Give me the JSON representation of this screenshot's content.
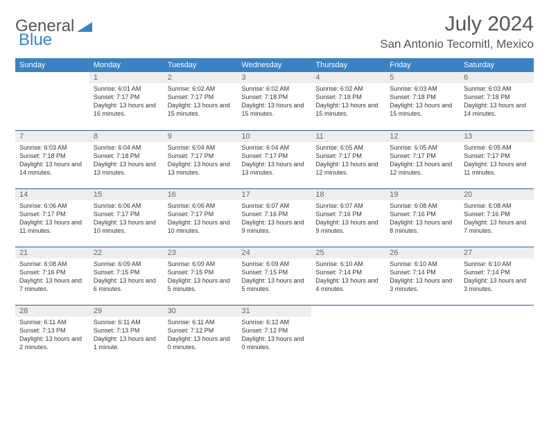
{
  "logo": {
    "part1": "General",
    "part2": "Blue"
  },
  "title": "July 2024",
  "location": "San Antonio Tecomitl, Mexico",
  "colors": {
    "header_bg": "#3b82c4",
    "header_text": "#ffffff",
    "daynum_bg": "#eeeeee",
    "rule": "#2a5a8a",
    "title_color": "#555555",
    "body_text": "#333333"
  },
  "day_headers": [
    "Sunday",
    "Monday",
    "Tuesday",
    "Wednesday",
    "Thursday",
    "Friday",
    "Saturday"
  ],
  "weeks": [
    [
      {
        "num": "",
        "lines": []
      },
      {
        "num": "1",
        "lines": [
          "Sunrise: 6:01 AM",
          "Sunset: 7:17 PM",
          "Daylight: 13 hours and 16 minutes."
        ]
      },
      {
        "num": "2",
        "lines": [
          "Sunrise: 6:02 AM",
          "Sunset: 7:17 PM",
          "Daylight: 13 hours and 15 minutes."
        ]
      },
      {
        "num": "3",
        "lines": [
          "Sunrise: 6:02 AM",
          "Sunset: 7:18 PM",
          "Daylight: 13 hours and 15 minutes."
        ]
      },
      {
        "num": "4",
        "lines": [
          "Sunrise: 6:02 AM",
          "Sunset: 7:18 PM",
          "Daylight: 13 hours and 15 minutes."
        ]
      },
      {
        "num": "5",
        "lines": [
          "Sunrise: 6:03 AM",
          "Sunset: 7:18 PM",
          "Daylight: 13 hours and 15 minutes."
        ]
      },
      {
        "num": "6",
        "lines": [
          "Sunrise: 6:03 AM",
          "Sunset: 7:18 PM",
          "Daylight: 13 hours and 14 minutes."
        ]
      }
    ],
    [
      {
        "num": "7",
        "lines": [
          "Sunrise: 6:03 AM",
          "Sunset: 7:18 PM",
          "Daylight: 13 hours and 14 minutes."
        ]
      },
      {
        "num": "8",
        "lines": [
          "Sunrise: 6:04 AM",
          "Sunset: 7:18 PM",
          "Daylight: 13 hours and 13 minutes."
        ]
      },
      {
        "num": "9",
        "lines": [
          "Sunrise: 6:04 AM",
          "Sunset: 7:17 PM",
          "Daylight: 13 hours and 13 minutes."
        ]
      },
      {
        "num": "10",
        "lines": [
          "Sunrise: 6:04 AM",
          "Sunset: 7:17 PM",
          "Daylight: 13 hours and 13 minutes."
        ]
      },
      {
        "num": "11",
        "lines": [
          "Sunrise: 6:05 AM",
          "Sunset: 7:17 PM",
          "Daylight: 13 hours and 12 minutes."
        ]
      },
      {
        "num": "12",
        "lines": [
          "Sunrise: 6:05 AM",
          "Sunset: 7:17 PM",
          "Daylight: 13 hours and 12 minutes."
        ]
      },
      {
        "num": "13",
        "lines": [
          "Sunrise: 6:05 AM",
          "Sunset: 7:17 PM",
          "Daylight: 13 hours and 11 minutes."
        ]
      }
    ],
    [
      {
        "num": "14",
        "lines": [
          "Sunrise: 6:06 AM",
          "Sunset: 7:17 PM",
          "Daylight: 13 hours and 11 minutes."
        ]
      },
      {
        "num": "15",
        "lines": [
          "Sunrise: 6:06 AM",
          "Sunset: 7:17 PM",
          "Daylight: 13 hours and 10 minutes."
        ]
      },
      {
        "num": "16",
        "lines": [
          "Sunrise: 6:06 AM",
          "Sunset: 7:17 PM",
          "Daylight: 13 hours and 10 minutes."
        ]
      },
      {
        "num": "17",
        "lines": [
          "Sunrise: 6:07 AM",
          "Sunset: 7:16 PM",
          "Daylight: 13 hours and 9 minutes."
        ]
      },
      {
        "num": "18",
        "lines": [
          "Sunrise: 6:07 AM",
          "Sunset: 7:16 PM",
          "Daylight: 13 hours and 9 minutes."
        ]
      },
      {
        "num": "19",
        "lines": [
          "Sunrise: 6:08 AM",
          "Sunset: 7:16 PM",
          "Daylight: 13 hours and 8 minutes."
        ]
      },
      {
        "num": "20",
        "lines": [
          "Sunrise: 6:08 AM",
          "Sunset: 7:16 PM",
          "Daylight: 13 hours and 7 minutes."
        ]
      }
    ],
    [
      {
        "num": "21",
        "lines": [
          "Sunrise: 6:08 AM",
          "Sunset: 7:16 PM",
          "Daylight: 13 hours and 7 minutes."
        ]
      },
      {
        "num": "22",
        "lines": [
          "Sunrise: 6:09 AM",
          "Sunset: 7:15 PM",
          "Daylight: 13 hours and 6 minutes."
        ]
      },
      {
        "num": "23",
        "lines": [
          "Sunrise: 6:09 AM",
          "Sunset: 7:15 PM",
          "Daylight: 13 hours and 5 minutes."
        ]
      },
      {
        "num": "24",
        "lines": [
          "Sunrise: 6:09 AM",
          "Sunset: 7:15 PM",
          "Daylight: 13 hours and 5 minutes."
        ]
      },
      {
        "num": "25",
        "lines": [
          "Sunrise: 6:10 AM",
          "Sunset: 7:14 PM",
          "Daylight: 13 hours and 4 minutes."
        ]
      },
      {
        "num": "26",
        "lines": [
          "Sunrise: 6:10 AM",
          "Sunset: 7:14 PM",
          "Daylight: 13 hours and 3 minutes."
        ]
      },
      {
        "num": "27",
        "lines": [
          "Sunrise: 6:10 AM",
          "Sunset: 7:14 PM",
          "Daylight: 13 hours and 3 minutes."
        ]
      }
    ],
    [
      {
        "num": "28",
        "lines": [
          "Sunrise: 6:11 AM",
          "Sunset: 7:13 PM",
          "Daylight: 13 hours and 2 minutes."
        ]
      },
      {
        "num": "29",
        "lines": [
          "Sunrise: 6:11 AM",
          "Sunset: 7:13 PM",
          "Daylight: 13 hours and 1 minute."
        ]
      },
      {
        "num": "30",
        "lines": [
          "Sunrise: 6:11 AM",
          "Sunset: 7:12 PM",
          "Daylight: 13 hours and 0 minutes."
        ]
      },
      {
        "num": "31",
        "lines": [
          "Sunrise: 6:12 AM",
          "Sunset: 7:12 PM",
          "Daylight: 13 hours and 0 minutes."
        ]
      },
      {
        "num": "",
        "lines": []
      },
      {
        "num": "",
        "lines": []
      },
      {
        "num": "",
        "lines": []
      }
    ]
  ]
}
